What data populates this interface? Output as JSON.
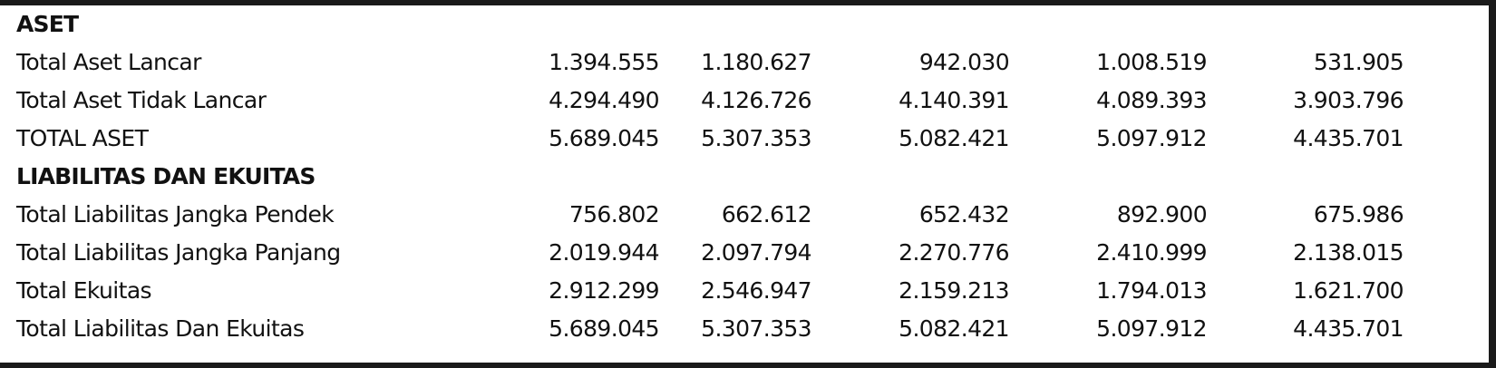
{
  "sections": [
    {
      "heading": "ASET",
      "rows": [
        {
          "label": "Total Aset Lancar",
          "values": [
            "1.394.555",
            "1.180.627",
            "942.030",
            "1.008.519",
            "531.905"
          ]
        },
        {
          "label": "Total Aset Tidak Lancar",
          "values": [
            "4.294.490",
            "4.126.726",
            "4.140.391",
            "4.089.393",
            "3.903.796"
          ]
        },
        {
          "label": "TOTAL ASET",
          "values": [
            "5.689.045",
            "5.307.353",
            "5.082.421",
            "5.097.912",
            "4.435.701"
          ]
        }
      ]
    },
    {
      "heading": "LIABILITAS DAN EKUITAS",
      "rows": [
        {
          "label": "Total Liabilitas Jangka Pendek",
          "values": [
            "756.802",
            "662.612",
            "652.432",
            "892.900",
            "675.986"
          ]
        },
        {
          "label": "Total Liabilitas Jangka Panjang",
          "values": [
            "2.019.944",
            "2.097.794",
            "2.270.776",
            "2.410.999",
            "2.138.015"
          ]
        },
        {
          "label": "Total Ekuitas",
          "values": [
            "2.912.299",
            "2.546.947",
            "2.159.213",
            "1.794.013",
            "1.621.700"
          ]
        },
        {
          "label": "Total Liabilitas Dan Ekuitas",
          "values": [
            "5.689.045",
            "5.307.353",
            "5.082.421",
            "5.097.912",
            "4.435.701"
          ]
        }
      ]
    }
  ]
}
